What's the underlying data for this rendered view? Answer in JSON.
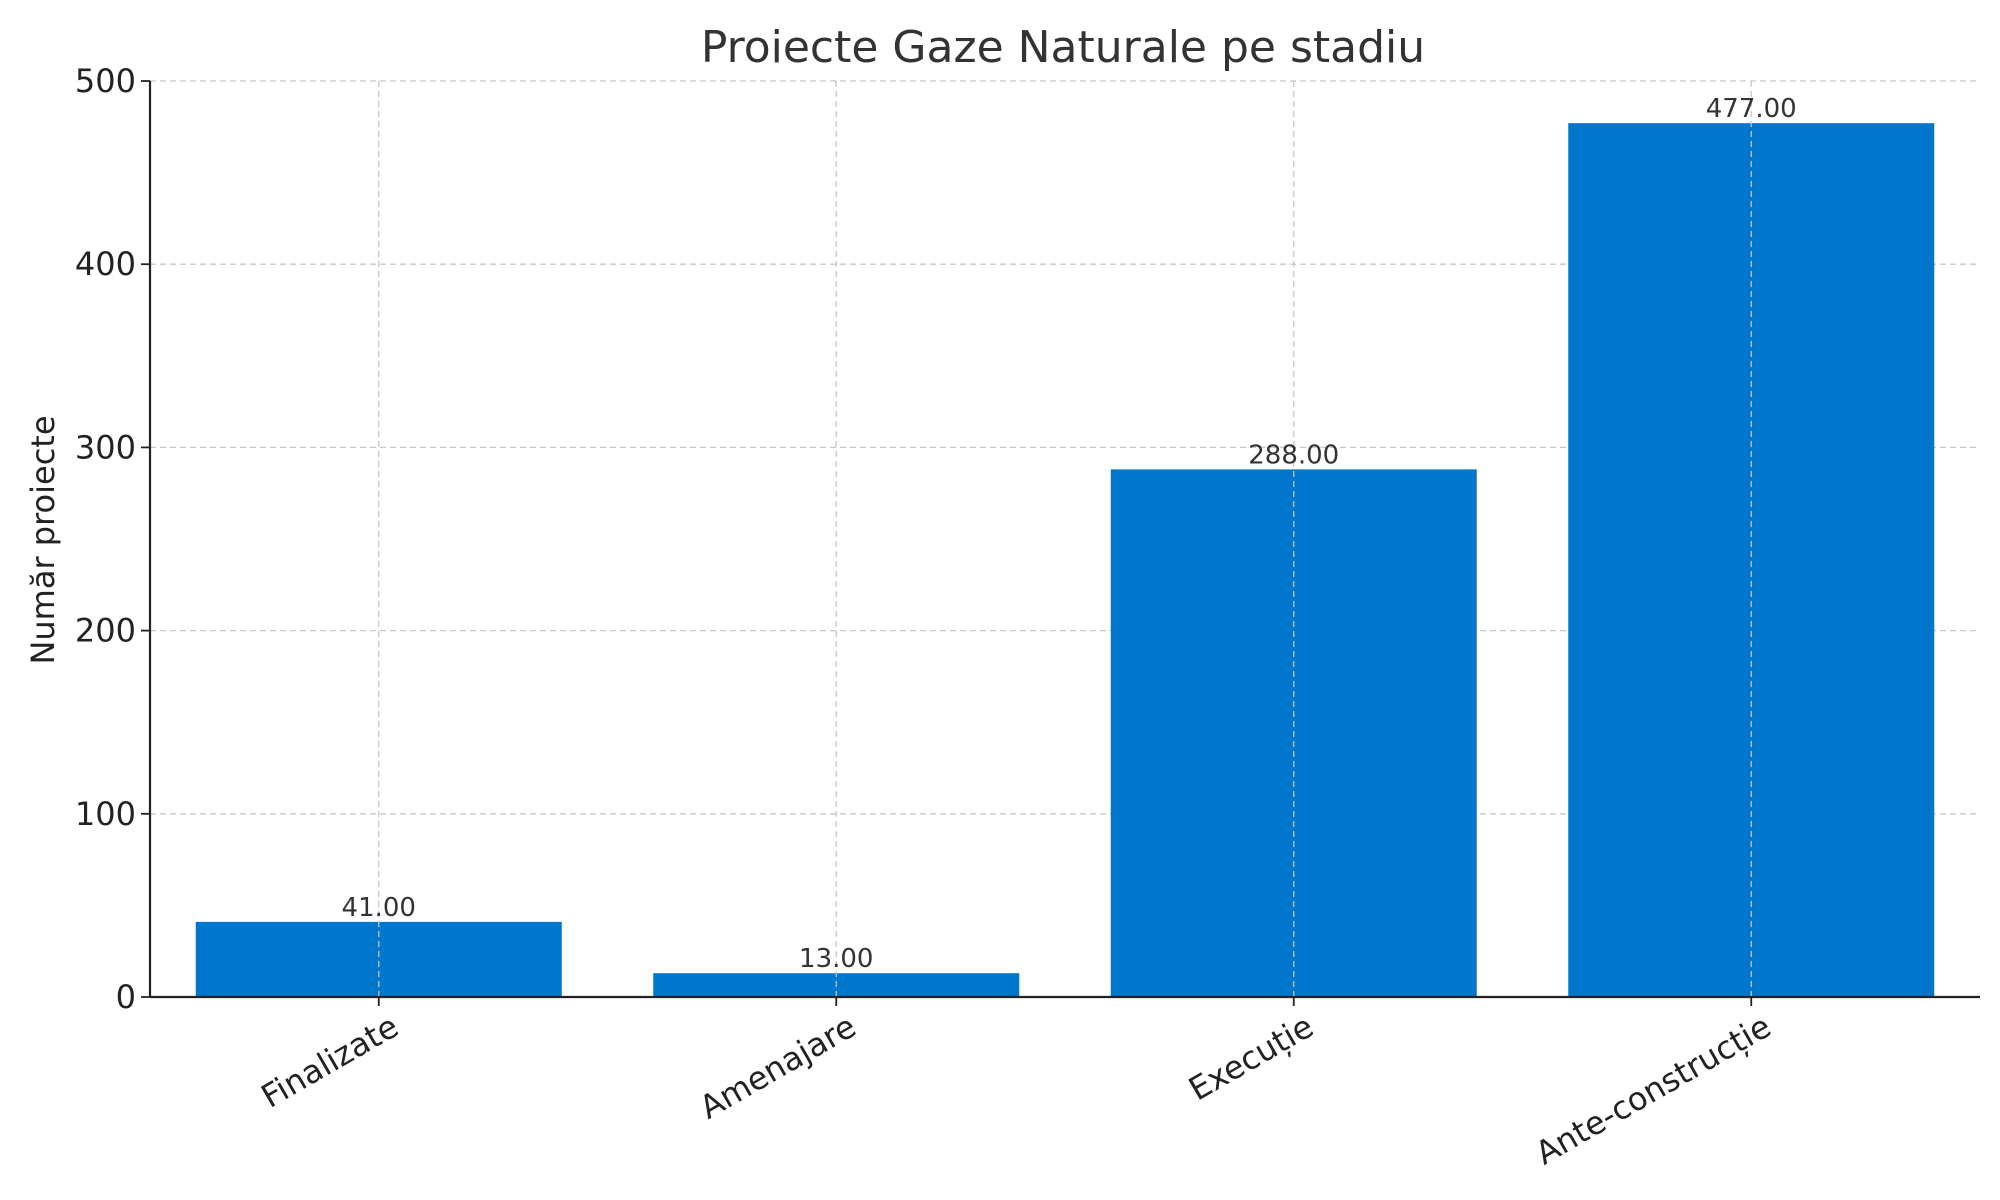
{
  "chart_data": {
    "type": "bar",
    "title": "Proiecte Gaze Naturale pe stadiu",
    "xlabel": "",
    "ylabel": "Număr proiecte",
    "categories": [
      "Finalizate",
      "Amenajare",
      "Execuție",
      "Ante-construcție"
    ],
    "values": [
      41,
      13,
      288,
      477
    ],
    "data_labels": [
      "41.00",
      "13.00",
      "288.00",
      "477.00"
    ],
    "ylim": [
      0,
      500
    ],
    "yticks": [
      0,
      100,
      200,
      300,
      400,
      500
    ],
    "ytick_labels": [
      "0",
      "100",
      "200",
      "300",
      "400",
      "500"
    ],
    "grid": true,
    "bar_color": "#0077cc"
  }
}
